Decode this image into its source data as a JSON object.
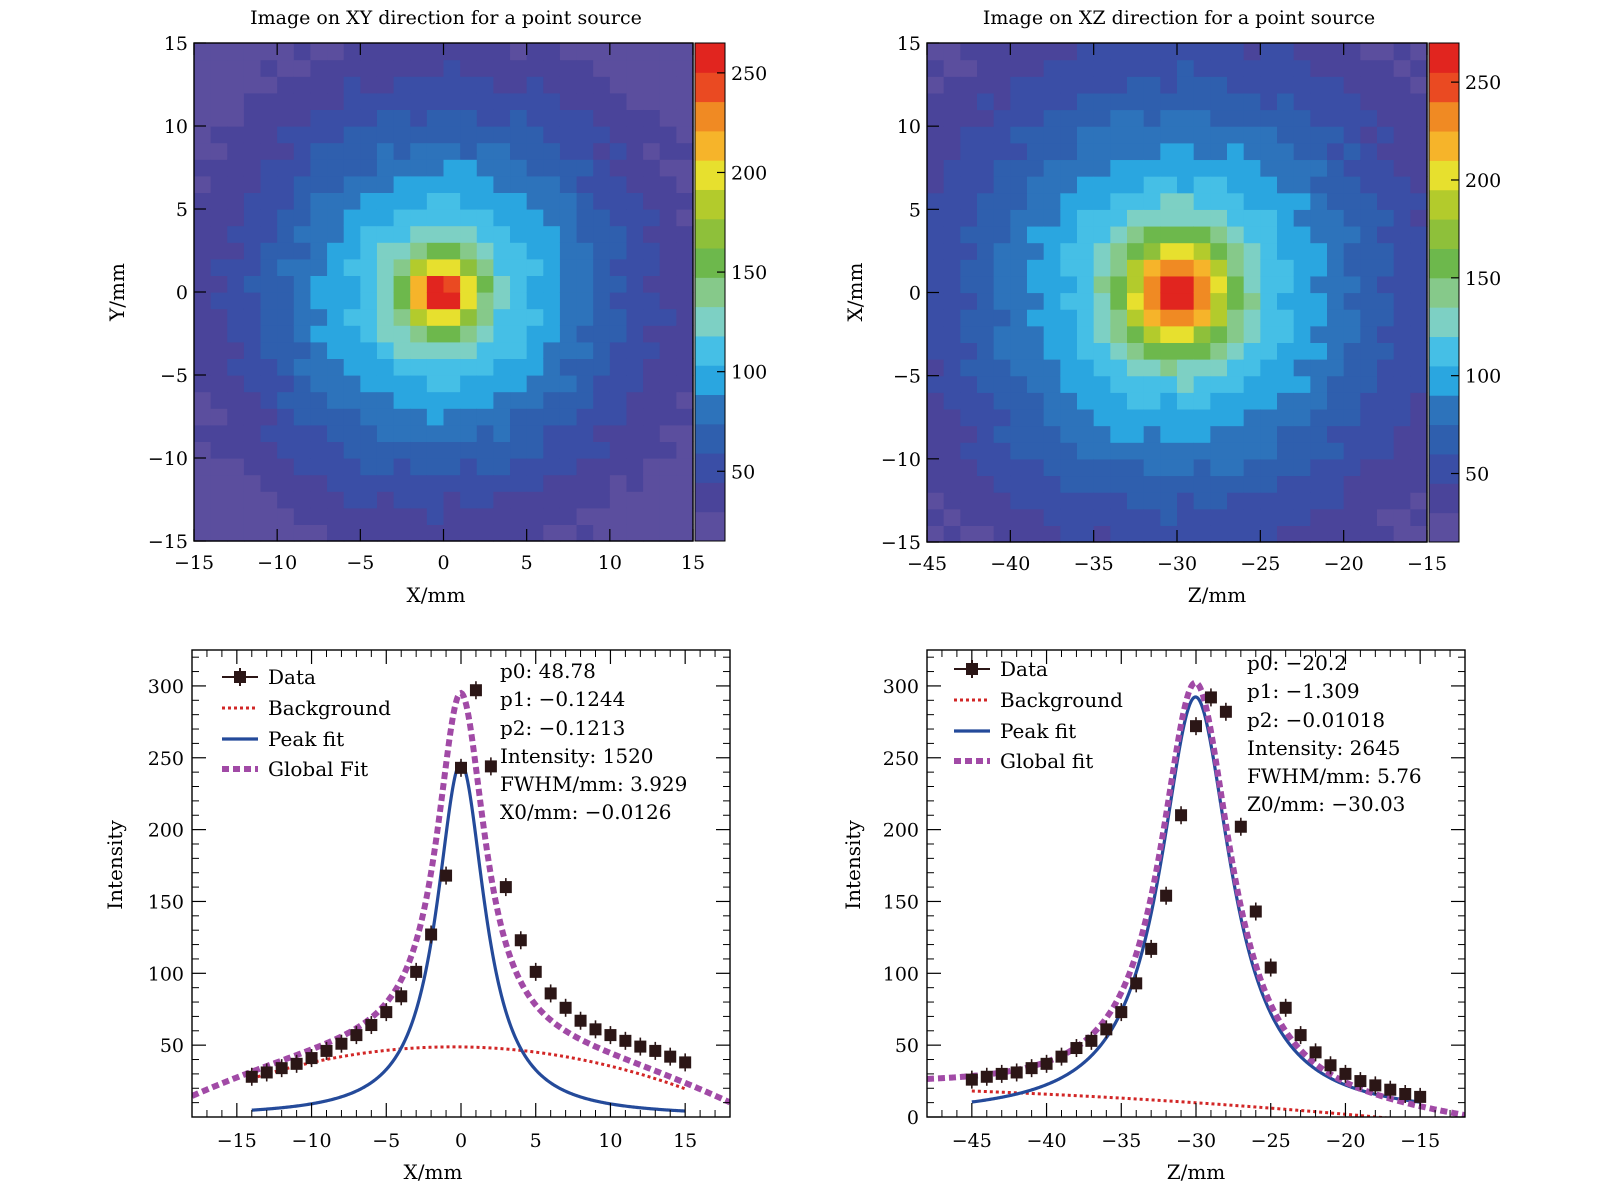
{
  "colors": {
    "palette": [
      "#5b4e9e",
      "#4a449a",
      "#3a4ea6",
      "#2f5fae",
      "#2d73bb",
      "#2aa6e0",
      "#45bfe6",
      "#7dd0c4",
      "#86c98a",
      "#6db84c",
      "#8ec03a",
      "#b3cb2c",
      "#e7e02e",
      "#f6b42a",
      "#f08a23",
      "#ea4a22",
      "#e1251f"
    ],
    "data_marker": "#2b1616",
    "background_curve": "#d22626",
    "peak_fit_curve": "#244a9a",
    "global_fit_curve": "#a14aa6"
  },
  "chart_data": [
    {
      "type": "heatmap",
      "title": "Image on XY direction for a point source",
      "xlabel": "X/mm",
      "ylabel": "Y/mm",
      "xlim": [
        -15,
        15
      ],
      "ylim": [
        -15,
        15
      ],
      "center": [
        -0.1,
        0.0
      ],
      "bin_size": 1.0,
      "sigma_core": 1.5,
      "sigma_halo": 8.0,
      "x_ticks": [
        "−15",
        "−10",
        "−5",
        "0",
        "5",
        "10",
        "15"
      ],
      "y_ticks": [
        "−15",
        "−10",
        "−5",
        "0",
        "5",
        "10",
        "15"
      ],
      "colorbar": {
        "range": [
          15,
          265
        ],
        "ticks": [
          "50",
          "100",
          "150",
          "200",
          "250"
        ]
      }
    },
    {
      "type": "heatmap",
      "title": "Image on XZ direction for a point source",
      "xlabel": "Z/mm",
      "ylabel": "X/mm",
      "xlim": [
        -45,
        -15
      ],
      "ylim": [
        -15,
        15
      ],
      "center": [
        -30.0,
        0.0
      ],
      "bin_size": 1.0,
      "sigma_core": 2.2,
      "sigma_halo": 9.5,
      "x_ticks": [
        "−45",
        "−40",
        "−35",
        "−30",
        "−25",
        "−20",
        "−15"
      ],
      "y_ticks": [
        "−15",
        "−10",
        "−5",
        "0",
        "5",
        "10",
        "15"
      ],
      "colorbar": {
        "range": [
          15,
          270
        ],
        "ticks": [
          "50",
          "100",
          "150",
          "200",
          "250"
        ]
      }
    },
    {
      "type": "scatter",
      "title": "",
      "xlabel": "X/mm",
      "ylabel": "Intensity",
      "xlim": [
        -18,
        18
      ],
      "ylim": [
        0,
        325
      ],
      "x_ticks": [
        "−15",
        "−10",
        "−5",
        "0",
        "5",
        "10",
        "15"
      ],
      "y_ticks": [
        "50",
        "100",
        "150",
        "200",
        "250",
        "300"
      ],
      "data": {
        "x": [
          -14,
          -13,
          -12,
          -11,
          -10,
          -9,
          -8,
          -7,
          -6,
          -5,
          -4,
          -3,
          -2,
          -1,
          0,
          1,
          2,
          3,
          4,
          5,
          6,
          7,
          8,
          9,
          10,
          11,
          12,
          13,
          14,
          15
        ],
        "y": [
          28,
          31,
          34,
          37,
          41,
          46,
          51,
          57,
          64,
          73,
          84,
          101,
          127,
          168,
          243,
          297,
          244,
          160,
          123,
          101,
          86,
          76,
          67,
          61,
          57,
          53,
          49,
          46,
          42,
          38
        ]
      },
      "fit": {
        "p0": 48.78,
        "p1": -0.1244,
        "p2": -0.1213,
        "intensity": 1520,
        "fwhm": 3.929,
        "center": -0.0126
      },
      "legend": [
        "Data",
        "Background",
        "Peak fit",
        "Global Fit"
      ],
      "stats": [
        "p0: 48.78",
        "p1: −0.1244",
        "p2: −0.1213",
        "Intensity: 1520",
        "FWHM/mm: 3.929",
        "X0/mm: −0.0126"
      ]
    },
    {
      "type": "scatter",
      "title": "",
      "xlabel": "Z/mm",
      "ylabel": "Intensity",
      "xlim": [
        -48,
        -12
      ],
      "ylim": [
        0,
        325
      ],
      "x_ticks": [
        "−45",
        "−40",
        "−35",
        "−30",
        "−25",
        "−20",
        "−15"
      ],
      "y_ticks": [
        "0",
        "50",
        "100",
        "150",
        "200",
        "250",
        "300"
      ],
      "data": {
        "x": [
          -45,
          -44,
          -43,
          -42,
          -41,
          -40,
          -39,
          -38,
          -37,
          -36,
          -35,
          -34,
          -33,
          -32,
          -31,
          -30,
          -29,
          -28,
          -27,
          -26,
          -25,
          -24,
          -23,
          -22,
          -21,
          -20,
          -19,
          -18,
          -17,
          -16,
          -15
        ],
        "y": [
          26,
          28,
          30,
          31,
          34,
          37,
          42,
          48,
          53,
          61,
          73,
          93,
          117,
          154,
          210,
          272,
          292,
          282,
          202,
          143,
          104,
          76,
          57,
          45,
          36,
          30,
          25,
          22,
          19,
          16,
          14
        ]
      },
      "fit": {
        "p0": -20.2,
        "p1": -1.309,
        "p2": -0.01018,
        "intensity": 2645,
        "fwhm": 5.76,
        "center": -30.03
      },
      "legend": [
        "Data",
        "Background",
        "Peak fit",
        "Global fit"
      ],
      "stats": [
        "p0: −20.2",
        "p1: −1.309",
        "p2: −0.01018",
        "Intensity: 2645",
        "FWHM/mm: 5.76",
        "Z0/mm: −30.03"
      ]
    }
  ]
}
